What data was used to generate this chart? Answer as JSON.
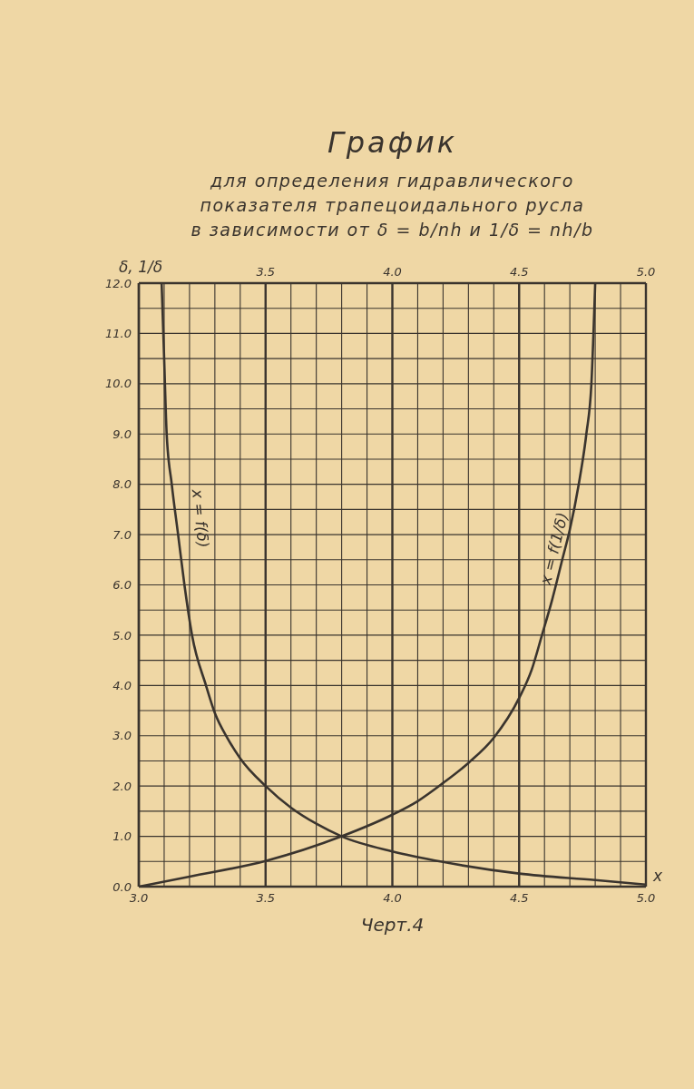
{
  "chart_data": {
    "type": "line",
    "title": "График",
    "subtitle": "для определения гидравлического\nпоказателя трапецоидального русла\nв зависимости от δ = b/nh и 1/δ = nh/b",
    "xlabel": "x",
    "ylabel": "δ, 1/δ",
    "annotations": [
      "Черт.4"
    ],
    "xlim": [
      3,
      5
    ],
    "xticks": [
      {
        "value": 3,
        "label": "3.0"
      },
      {
        "value": 3.1,
        "label": null
      },
      {
        "value": 3.2,
        "label": null
      },
      {
        "value": 3.3,
        "label": null
      },
      {
        "value": 3.4,
        "label": null
      },
      3.5,
      {
        "value": 3.6,
        "label": null
      },
      {
        "value": 3.7,
        "label": null
      },
      {
        "value": 3.8,
        "label": null
      },
      {
        "value": 3.9,
        "label": null
      },
      {
        "value": 4,
        "label": "4.0"
      },
      {
        "value": 4.1,
        "label": null
      },
      {
        "value": 4.2,
        "label": null
      },
      {
        "value": 4.3,
        "label": null
      },
      {
        "value": 4.4,
        "label": null
      },
      4.5,
      {
        "value": 4.6,
        "label": null
      },
      {
        "value": 4.7,
        "label": null
      },
      {
        "value": 4.8,
        "label": null
      },
      {
        "value": 4.9,
        "label": null
      },
      {
        "value": 5,
        "label": "5.0"
      }
    ],
    "x2lim": [
      3,
      5
    ],
    "x2ticks": [
      3.5,
      {
        "value": 4,
        "label": "4.0"
      },
      4.5,
      {
        "value": 5,
        "label": "5.0"
      }
    ],
    "ylim": [
      0,
      12
    ],
    "yticks": [
      {
        "value": 0,
        "label": "0.0"
      },
      {
        "value": 0.5,
        "label": null
      },
      {
        "value": 1,
        "label": "1.0"
      },
      {
        "value": 1.5,
        "label": null
      },
      {
        "value": 2,
        "label": "2.0"
      },
      {
        "value": 2.5,
        "label": null
      },
      {
        "value": 3,
        "label": "3.0"
      },
      {
        "value": 3.5,
        "label": null
      },
      {
        "value": 4,
        "label": "4.0"
      },
      {
        "value": 4.5,
        "label": null
      },
      {
        "value": 5,
        "label": "5.0"
      },
      {
        "value": 5.5,
        "label": null
      },
      {
        "value": 6,
        "label": "6.0"
      },
      {
        "value": 6.5,
        "label": null
      },
      {
        "value": 7,
        "label": "7.0"
      },
      {
        "value": 7.5,
        "label": null
      },
      {
        "value": 8,
        "label": "8.0"
      },
      {
        "value": 8.5,
        "label": null
      },
      {
        "value": 9,
        "label": "9.0"
      },
      {
        "value": 9.5,
        "label": null
      },
      {
        "value": 10,
        "label": "10.0"
      },
      {
        "value": 10.5,
        "label": null
      },
      {
        "value": 11,
        "label": "11.0"
      },
      {
        "value": 11.5,
        "label": null
      },
      {
        "value": 12,
        "label": "12.0"
      }
    ],
    "grid": true,
    "legend": false,
    "marker": "none",
    "series": [
      {
        "name": "x = f(δ)",
        "color": "#3a342e",
        "x": [
          3.09,
          3.1,
          3.11,
          3.13,
          3.155,
          3.18,
          3.21,
          3.265,
          3.3,
          3.35,
          3.4,
          3.5,
          3.6,
          3.7,
          3.8,
          4.0,
          4.2,
          4.5,
          4.8,
          5.0
        ],
        "values": [
          12,
          10.5,
          9.0,
          8.0,
          7.0,
          6.0,
          5.0,
          4.0,
          3.45,
          2.95,
          2.55,
          2.0,
          1.57,
          1.25,
          1.0,
          0.7,
          0.49,
          0.26,
          0.13,
          0.04
        ]
      },
      {
        "name": "x = f(1/δ)",
        "color": "#3a342e",
        "x": [
          3.0,
          3.2,
          3.5,
          3.8,
          4.0,
          4.1,
          4.2,
          4.3,
          4.4,
          4.5,
          4.55,
          4.59,
          4.63,
          4.67,
          4.7,
          4.735,
          4.765,
          4.785,
          4.8
        ],
        "values": [
          0.0,
          0.2,
          0.51,
          1.0,
          1.43,
          1.7,
          2.06,
          2.46,
          2.96,
          3.75,
          4.32,
          5.0,
          5.7,
          6.5,
          7.1,
          8.0,
          9.0,
          10.0,
          12.0
        ]
      }
    ]
  }
}
